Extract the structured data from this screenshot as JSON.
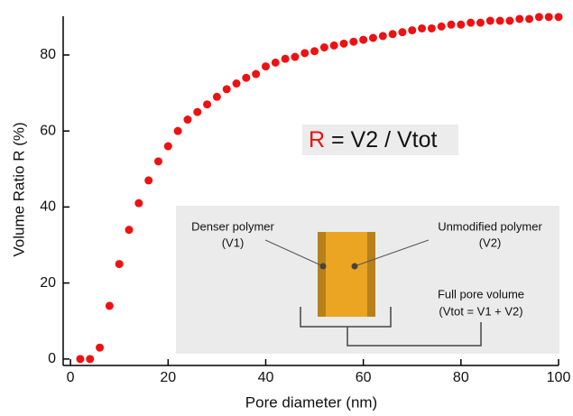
{
  "chart_data": {
    "type": "scatter",
    "xlabel": "Pore diameter (nm)",
    "ylabel": "Volume Ratio R (%)",
    "x": [
      2,
      4,
      6,
      8,
      10,
      12,
      14,
      16,
      18,
      20,
      22,
      24,
      26,
      28,
      30,
      32,
      34,
      36,
      38,
      40,
      42,
      44,
      46,
      48,
      50,
      52,
      54,
      56,
      58,
      60,
      62,
      64,
      66,
      68,
      70,
      72,
      74,
      76,
      78,
      80,
      82,
      84,
      86,
      88,
      90,
      92,
      94,
      96,
      98,
      100
    ],
    "values": [
      0,
      0,
      3,
      14,
      25,
      34,
      41,
      47,
      52,
      56,
      60,
      63,
      65,
      67,
      69,
      71,
      72.5,
      74,
      75,
      77,
      78,
      79,
      79.5,
      80.5,
      81,
      82,
      82.5,
      83,
      83.5,
      84,
      84.5,
      85,
      85.5,
      86,
      86.5,
      87,
      87,
      87.5,
      88,
      88,
      88.5,
      88.5,
      89,
      89,
      89,
      89.5,
      89.5,
      90,
      90,
      90
    ],
    "color": "#ee1111",
    "xlim": [
      -1.5,
      100
    ],
    "ylim": [
      -1.7,
      90.2
    ],
    "xticks": [
      0,
      20,
      40,
      60,
      80,
      100
    ],
    "yticks": [
      0,
      20,
      40,
      60,
      80
    ],
    "formula": {
      "symbol": "R",
      "rest": "= V2 / Vtot",
      "symbol_color": "#ee1111"
    },
    "inset": {
      "left_label": [
        "Denser polymer",
        "(V1)"
      ],
      "right_label": [
        "Unmodified polymer",
        "(V2)"
      ],
      "bottom_label": [
        "Full pore volume",
        "(Vtot = V1 + V2)"
      ]
    }
  }
}
